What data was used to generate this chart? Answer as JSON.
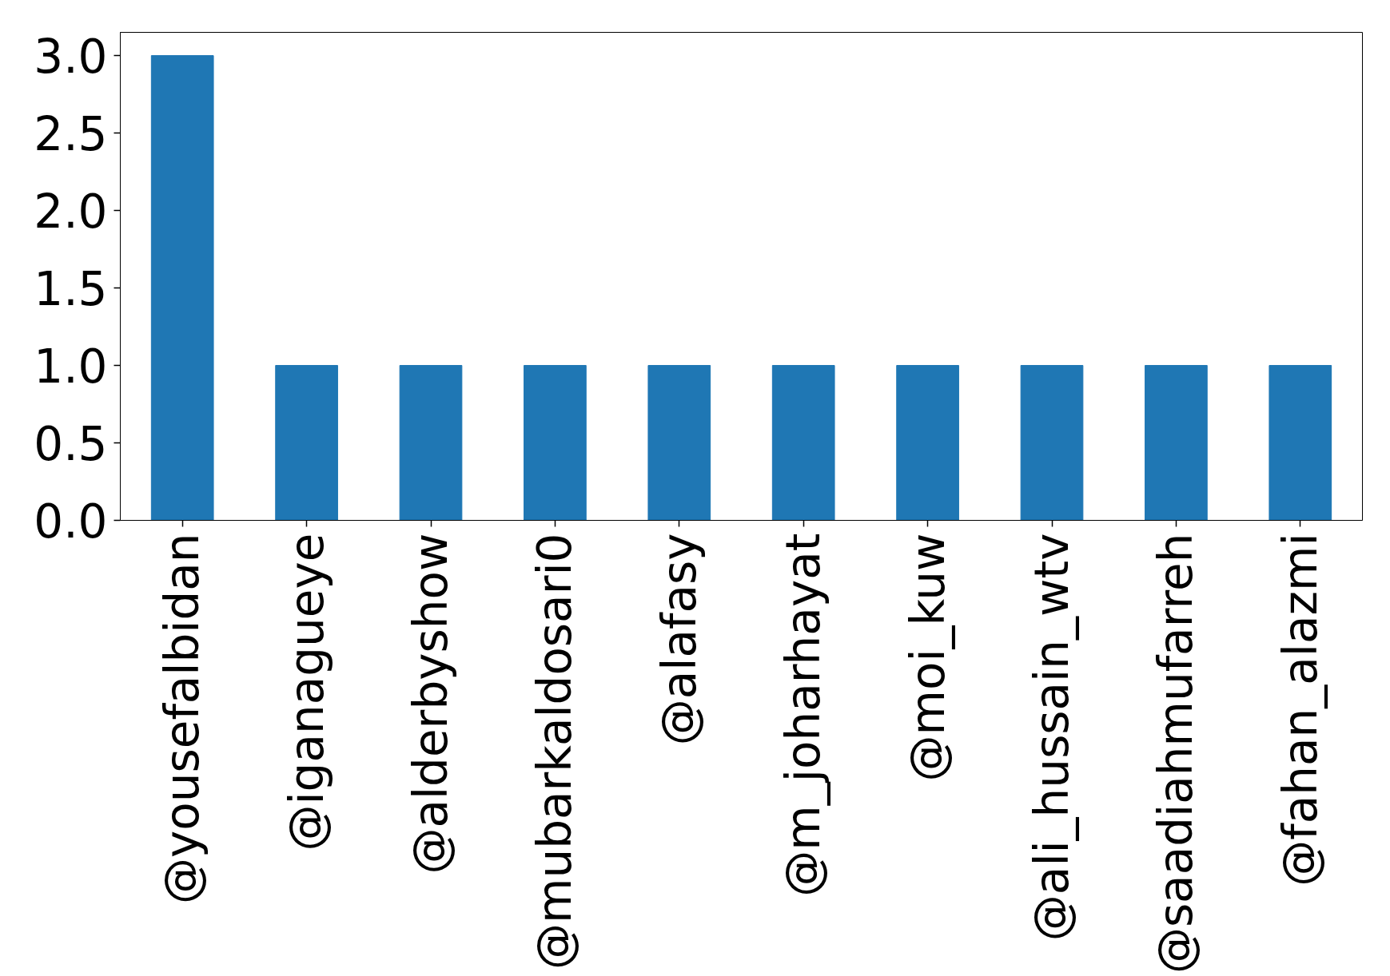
{
  "chart_data": {
    "type": "bar",
    "categories": [
      "@yousefalbidan",
      "@iganagueye",
      "@alderbyshow",
      "@mubarkaldosari0",
      "@alafasy",
      "@m_joharhayat",
      "@moi_kuw",
      "@ali_hussain_wtv",
      "@saadiahmufarreh",
      "@fahan_alazmi"
    ],
    "values": [
      3,
      1,
      1,
      1,
      1,
      1,
      1,
      1,
      1,
      1
    ],
    "color": "#1f77b4",
    "ylim": [
      0,
      3.15
    ],
    "yticks": [
      {
        "value": 0,
        "label": "0.0"
      },
      {
        "value": 0.5,
        "label": "0.5"
      },
      {
        "value": 1,
        "label": "1.0"
      },
      {
        "value": 1.5,
        "label": "1.5"
      },
      {
        "value": 2,
        "label": "2.0"
      },
      {
        "value": 2.5,
        "label": "2.5"
      },
      {
        "value": 3,
        "label": "3.0"
      }
    ],
    "grid": false
  }
}
